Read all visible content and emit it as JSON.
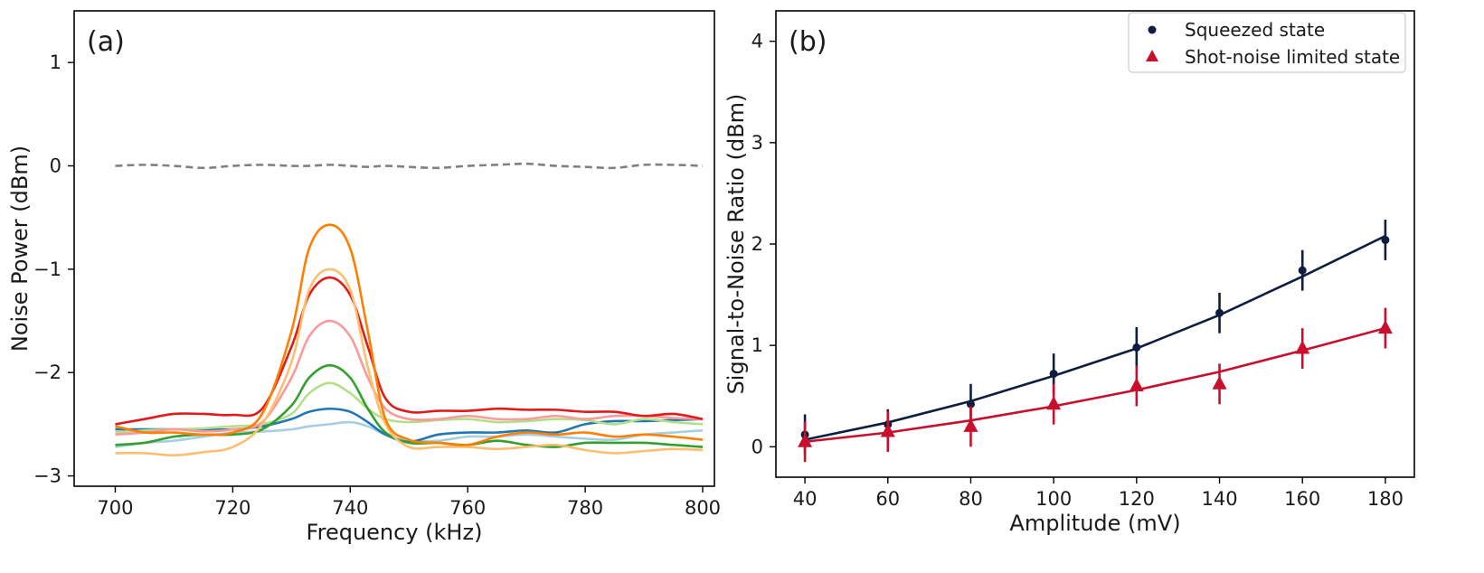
{
  "chart_data": [
    {
      "type": "line",
      "panel_label": "(a)",
      "xlabel": "Frequency (kHz)",
      "ylabel": "Noise Power (dBm)",
      "xlim": [
        693,
        802
      ],
      "ylim": [
        -3.1,
        1.5
      ],
      "xticks": [
        700,
        720,
        740,
        760,
        780,
        800
      ],
      "yticks": [
        -3,
        -2,
        -1,
        0,
        1
      ],
      "x": [
        700,
        705,
        710,
        715,
        720,
        725,
        730,
        733,
        736.5,
        740,
        743,
        746,
        750,
        755,
        760,
        765,
        770,
        775,
        780,
        785,
        790,
        795,
        800
      ],
      "series": [
        {
          "name": "reference",
          "color": "#808080",
          "dashed": true,
          "values": [
            0.0,
            0.01,
            0.0,
            -0.02,
            0.0,
            0.01,
            0.0,
            0.0,
            0.01,
            0.0,
            -0.01,
            0.0,
            -0.01,
            -0.02,
            0.0,
            0.01,
            0.02,
            0.0,
            -0.01,
            -0.02,
            0.01,
            0.01,
            0.0
          ]
        },
        {
          "name": "light-blue",
          "color": "#a6cee3",
          "values": [
            -2.72,
            -2.68,
            -2.66,
            -2.62,
            -2.58,
            -2.57,
            -2.55,
            -2.52,
            -2.5,
            -2.48,
            -2.52,
            -2.6,
            -2.66,
            -2.66,
            -2.62,
            -2.62,
            -2.6,
            -2.62,
            -2.64,
            -2.65,
            -2.6,
            -2.58,
            -2.56
          ]
        },
        {
          "name": "blue",
          "color": "#1f78b4",
          "values": [
            -2.55,
            -2.55,
            -2.55,
            -2.55,
            -2.55,
            -2.52,
            -2.45,
            -2.38,
            -2.35,
            -2.38,
            -2.48,
            -2.6,
            -2.67,
            -2.6,
            -2.58,
            -2.58,
            -2.56,
            -2.58,
            -2.5,
            -2.47,
            -2.47,
            -2.46,
            -2.45
          ]
        },
        {
          "name": "light-green",
          "color": "#b2df8a",
          "values": [
            -2.58,
            -2.56,
            -2.55,
            -2.54,
            -2.52,
            -2.5,
            -2.4,
            -2.2,
            -2.1,
            -2.2,
            -2.35,
            -2.45,
            -2.48,
            -2.46,
            -2.45,
            -2.48,
            -2.47,
            -2.45,
            -2.46,
            -2.5,
            -2.45,
            -2.48,
            -2.5
          ]
        },
        {
          "name": "green",
          "color": "#33a02c",
          "values": [
            -2.7,
            -2.68,
            -2.62,
            -2.6,
            -2.6,
            -2.55,
            -2.32,
            -2.05,
            -1.93,
            -2.05,
            -2.35,
            -2.58,
            -2.68,
            -2.68,
            -2.7,
            -2.66,
            -2.7,
            -2.72,
            -2.68,
            -2.68,
            -2.68,
            -2.7,
            -2.72
          ]
        },
        {
          "name": "pink",
          "color": "#fb9a99",
          "values": [
            -2.6,
            -2.58,
            -2.55,
            -2.57,
            -2.55,
            -2.48,
            -2.05,
            -1.65,
            -1.5,
            -1.65,
            -2.05,
            -2.35,
            -2.45,
            -2.45,
            -2.42,
            -2.45,
            -2.45,
            -2.42,
            -2.45,
            -2.42,
            -2.42,
            -2.44,
            -2.45
          ]
        },
        {
          "name": "red",
          "color": "#e31a1c",
          "values": [
            -2.5,
            -2.45,
            -2.4,
            -2.4,
            -2.41,
            -2.35,
            -1.75,
            -1.25,
            -1.08,
            -1.25,
            -1.75,
            -2.25,
            -2.38,
            -2.37,
            -2.37,
            -2.35,
            -2.36,
            -2.36,
            -2.38,
            -2.38,
            -2.42,
            -2.4,
            -2.45
          ]
        },
        {
          "name": "light-orange",
          "color": "#fdbf6f",
          "values": [
            -2.78,
            -2.78,
            -2.8,
            -2.77,
            -2.72,
            -2.5,
            -1.9,
            -1.2,
            -1.0,
            -1.2,
            -1.95,
            -2.5,
            -2.72,
            -2.72,
            -2.72,
            -2.74,
            -2.72,
            -2.7,
            -2.75,
            -2.78,
            -2.76,
            -2.74,
            -2.75
          ]
        },
        {
          "name": "orange",
          "color": "#ff7f00",
          "values": [
            -2.52,
            -2.58,
            -2.58,
            -2.6,
            -2.58,
            -2.4,
            -1.6,
            -0.8,
            -0.57,
            -0.8,
            -1.6,
            -2.45,
            -2.65,
            -2.68,
            -2.7,
            -2.62,
            -2.58,
            -2.6,
            -2.58,
            -2.62,
            -2.6,
            -2.62,
            -2.65
          ]
        }
      ]
    },
    {
      "type": "scatter",
      "panel_label": "(b)",
      "xlabel": "Amplitude (mV)",
      "ylabel": "Signal-to-Noise Ratio (dBm)",
      "xlim": [
        33,
        187
      ],
      "ylim": [
        -0.3,
        4.3
      ],
      "xticks": [
        40,
        60,
        80,
        100,
        120,
        140,
        160,
        180
      ],
      "yticks": [
        0,
        1,
        2,
        3,
        4
      ],
      "legend_position": "top-right",
      "series": [
        {
          "name": "Squeezed state",
          "color": "#0d1e3f",
          "marker": "circle",
          "x": [
            40,
            60,
            80,
            100,
            120,
            140,
            160,
            180
          ],
          "values": [
            0.12,
            0.22,
            0.42,
            0.72,
            0.98,
            1.32,
            1.74,
            2.04
          ],
          "errors": [
            0.2,
            0.15,
            0.2,
            0.2,
            0.2,
            0.2,
            0.2,
            0.2
          ],
          "fit": [
            0.07,
            0.24,
            0.45,
            0.7,
            0.97,
            1.3,
            1.68,
            2.08
          ]
        },
        {
          "name": "Shot-noise limited state",
          "color": "#c8102e",
          "marker": "triangle",
          "x": [
            40,
            60,
            80,
            100,
            120,
            140,
            160,
            180
          ],
          "values": [
            0.05,
            0.15,
            0.2,
            0.42,
            0.6,
            0.62,
            0.97,
            1.17
          ],
          "errors": [
            0.2,
            0.2,
            0.2,
            0.2,
            0.2,
            0.2,
            0.2,
            0.2
          ],
          "fit": [
            0.05,
            0.14,
            0.26,
            0.4,
            0.56,
            0.74,
            0.95,
            1.17
          ]
        }
      ]
    }
  ]
}
